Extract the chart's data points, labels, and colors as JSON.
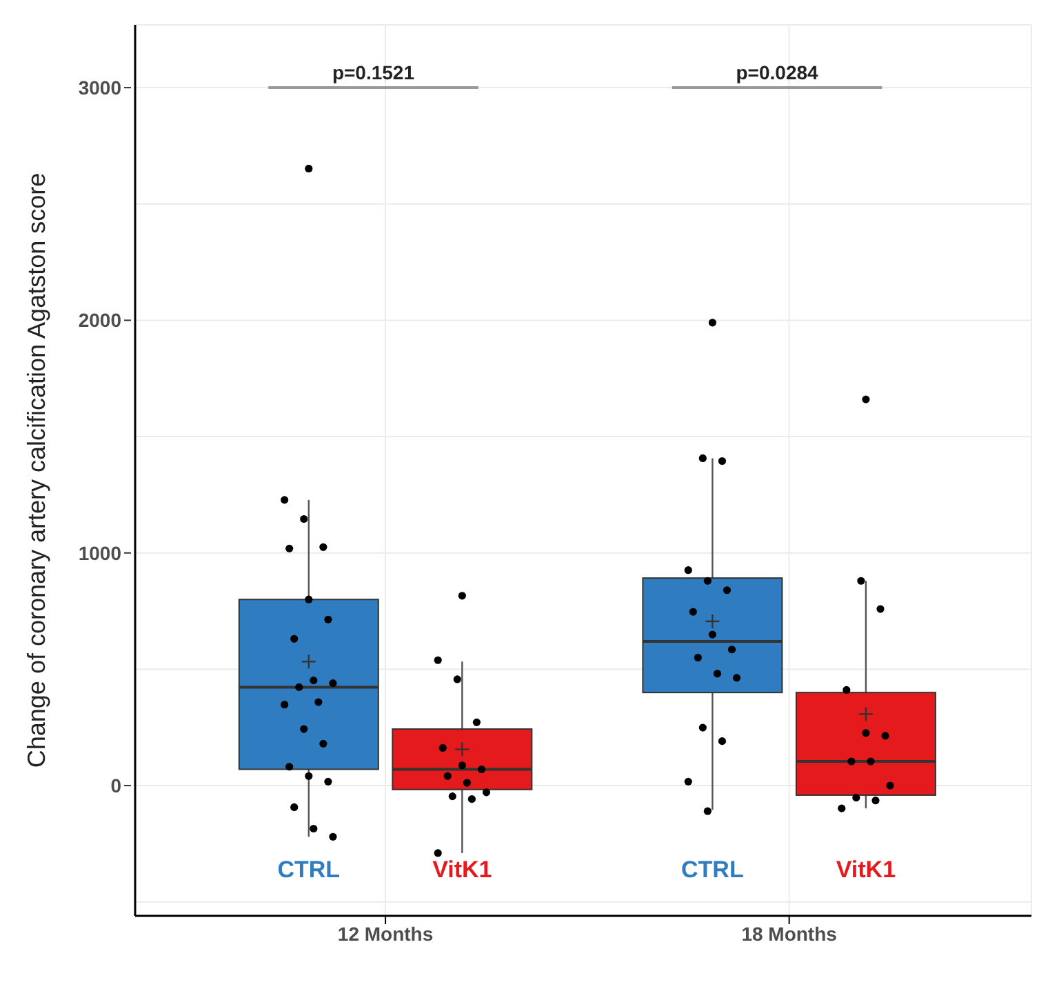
{
  "chart_data": {
    "type": "box",
    "ylabel": "Change of coronary artery calcification Agatston score",
    "categories": [
      "12 Months",
      "18 Months"
    ],
    "series": [
      {
        "name": "CTRL",
        "color": "#2f7dc0",
        "boxes": [
          {
            "low": -220,
            "q1": 70,
            "median": 423,
            "q3": 800,
            "high": 1228,
            "mean": 533,
            "outliers": [
              2652
            ]
          },
          {
            "low": -104,
            "q1": 400,
            "median": 620,
            "q3": 892,
            "high": 1407,
            "mean": 706,
            "outliers": [
              1990
            ]
          }
        ]
      },
      {
        "name": "VitK1",
        "color": "#e41a1c",
        "boxes": [
          {
            "low": -290,
            "q1": -17,
            "median": 70,
            "q3": 243,
            "high": 533,
            "mean": 156,
            "outliers": [
              816
            ]
          },
          {
            "low": -98,
            "q1": -41,
            "median": 104,
            "q3": 400,
            "high": 880,
            "mean": 307,
            "outliers": [
              1660
            ]
          }
        ]
      },
      {
        "type": "scatter",
        "color": "#000000",
        "x": [
          "12 Months",
          "12 Months",
          "12 Months",
          "12 Months",
          "12 Months",
          "12 Months",
          "12 Months",
          "12 Months",
          "12 Months",
          "12 Months",
          "12 Months",
          "12 Months",
          "12 Months",
          "12 Months",
          "12 Months",
          "12 Months",
          "12 Months",
          "12 Months",
          "12 Months",
          "12 Months",
          "18 Months",
          "18 Months",
          "18 Months",
          "18 Months",
          "18 Months",
          "18 Months",
          "18 Months",
          "18 Months",
          "18 Months",
          "18 Months",
          "18 Months",
          "18 Months",
          "18 Months",
          "18 Months",
          "18 Months"
        ],
        "values": [
          1228,
          1146,
          1025,
          1019,
          800,
          714,
          631,
          452,
          440,
          423,
          359,
          348,
          243,
          180,
          81,
          41,
          17,
          -93,
          -185,
          -220,
          1407,
          1395,
          926,
          880,
          840,
          747,
          649,
          585,
          550,
          481,
          463,
          249,
          191,
          17,
          -110
        ]
      },
      {
        "type": "scatter",
        "color": "#000000",
        "x": [
          "12 Months",
          "12 Months",
          "12 Months",
          "12 Months",
          "12 Months",
          "12 Months",
          "12 Months",
          "12 Months",
          "12 Months",
          "12 Months",
          "12 Months",
          "12 Months",
          "18 Months",
          "18 Months",
          "18 Months",
          "18 Months",
          "18 Months",
          "18 Months",
          "18 Months",
          "18 Months",
          "18 Months",
          "18 Months",
          "18 Months"
        ],
        "values": [
          539,
          457,
          272,
          162,
          87,
          70,
          41,
          12,
          -29,
          -46,
          -58,
          -290,
          880,
          759,
          411,
          226,
          214,
          104,
          104,
          0,
          -52,
          -64,
          -98
        ]
      }
    ],
    "ylim": [
      -560,
      3270
    ],
    "yticks": [
      {
        "value": -500,
        "label": null
      },
      0,
      {
        "value": 500,
        "label": null
      },
      1000,
      {
        "value": 1500,
        "label": null
      },
      2000,
      {
        "value": 2500,
        "label": null
      },
      3000
    ],
    "grid": true,
    "annotations": [
      "p=0.1521",
      "p=0.0284"
    ]
  }
}
